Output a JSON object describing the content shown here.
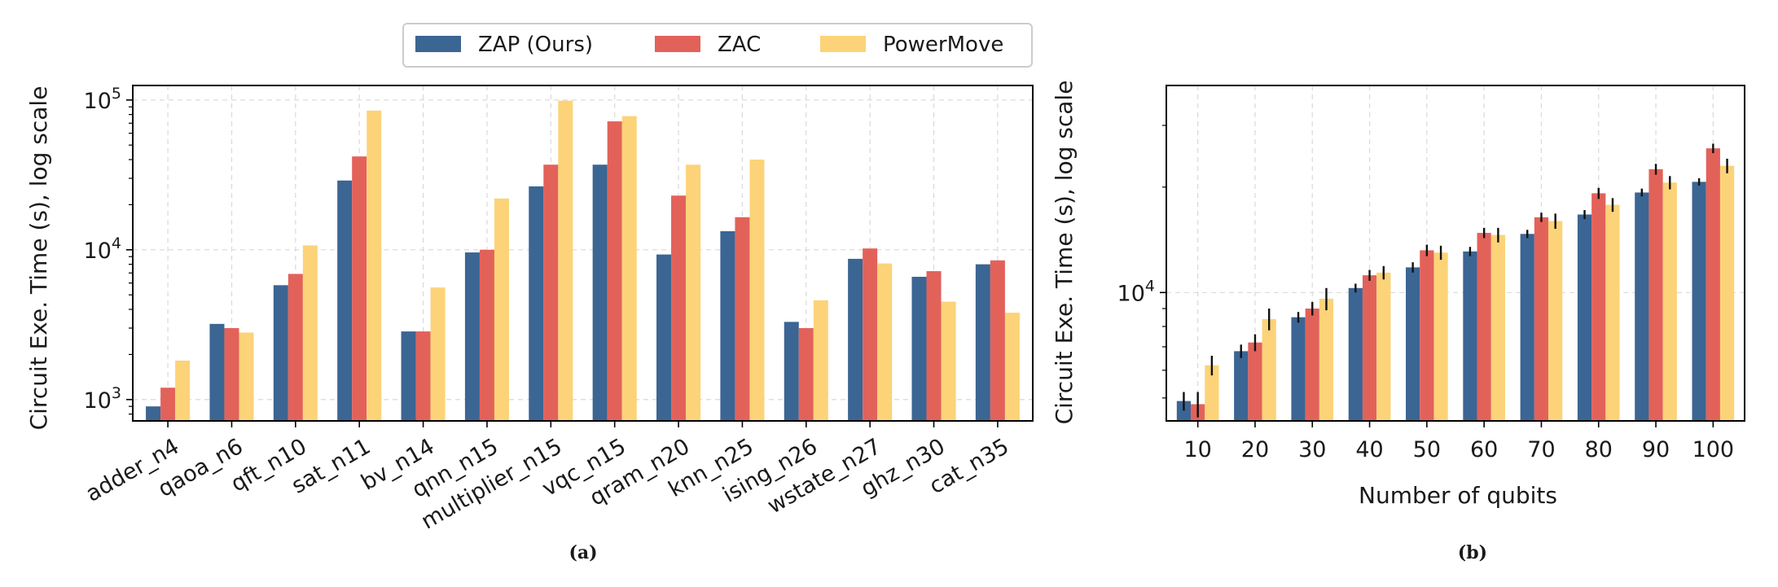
{
  "legend": {
    "placement": "top",
    "items": [
      {
        "label": "ZAP (Ours)",
        "color": "#3b6593"
      },
      {
        "label": "ZAC",
        "color": "#e2625a"
      },
      {
        "label": "PowerMove",
        "color": "#fcd378"
      }
    ]
  },
  "chart_data": [
    {
      "type": "bar",
      "caption": "(a)",
      "xlabel": "",
      "ylabel": "Circuit Exe. Time (s), log scale",
      "yscale": "log",
      "ylim": [
        720,
        125000
      ],
      "yticks": [
        1000,
        10000,
        100000
      ],
      "ytick_labels": [
        {
          "base": "10",
          "exp": "3"
        },
        {
          "base": "10",
          "exp": "4"
        },
        {
          "base": "10",
          "exp": "5"
        }
      ],
      "grid": true,
      "categories": [
        "adder_n4",
        "qaoa_n6",
        "qft_n10",
        "sat_n11",
        "bv_n14",
        "qnn_n15",
        "multiplier_n15",
        "vqc_n15",
        "qram_n20",
        "knn_n25",
        "ising_n26",
        "wstate_n27",
        "ghz_n30",
        "cat_n35"
      ],
      "series": [
        {
          "name": "ZAP (Ours)",
          "color": "#3b6593",
          "values": [
            900,
            3200,
            5800,
            29000,
            2850,
            9600,
            26500,
            37000,
            9300,
            13300,
            3300,
            8700,
            6600,
            8000
          ]
        },
        {
          "name": "ZAC",
          "color": "#e2625a",
          "values": [
            1200,
            3000,
            6900,
            42000,
            2850,
            10000,
            37000,
            72000,
            23000,
            16500,
            3000,
            10200,
            7200,
            8500
          ]
        },
        {
          "name": "PowerMove",
          "color": "#fcd378",
          "values": [
            1820,
            2800,
            10700,
            85000,
            5600,
            22000,
            99000,
            78000,
            37000,
            40000,
            4600,
            8100,
            4500,
            3800
          ]
        }
      ]
    },
    {
      "type": "bar",
      "caption": "(b)",
      "xlabel": "Number of qubits",
      "ylabel": "Circuit Exe. Time (s), log scale",
      "yscale": "log",
      "ylim": [
        4300,
        39000
      ],
      "yticks": [
        10000
      ],
      "ytick_labels": [
        {
          "base": "10",
          "exp": "4"
        }
      ],
      "grid": true,
      "categories": [
        "10",
        "20",
        "30",
        "40",
        "50",
        "60",
        "70",
        "80",
        "90",
        "100"
      ],
      "series": [
        {
          "name": "ZAP (Ours)",
          "color": "#3b6593",
          "values": [
            4900,
            6800,
            8500,
            10300,
            11800,
            13100,
            14700,
            16700,
            19300,
            20700
          ],
          "errors": [
            300,
            300,
            300,
            300,
            400,
            400,
            400,
            500,
            500,
            500
          ]
        },
        {
          "name": "ZAC",
          "color": "#e2625a",
          "values": [
            4800,
            7200,
            9000,
            11200,
            13200,
            14800,
            16400,
            19200,
            22500,
            25800
          ],
          "errors": [
            400,
            400,
            400,
            400,
            500,
            500,
            500,
            700,
            800,
            800
          ]
        },
        {
          "name": "PowerMove",
          "color": "#fcd378",
          "values": [
            6200,
            8400,
            9600,
            11400,
            13000,
            14600,
            16000,
            17800,
            20600,
            23000
          ],
          "errors": [
            400,
            600,
            700,
            500,
            600,
            700,
            800,
            800,
            900,
            1100
          ]
        }
      ]
    }
  ]
}
